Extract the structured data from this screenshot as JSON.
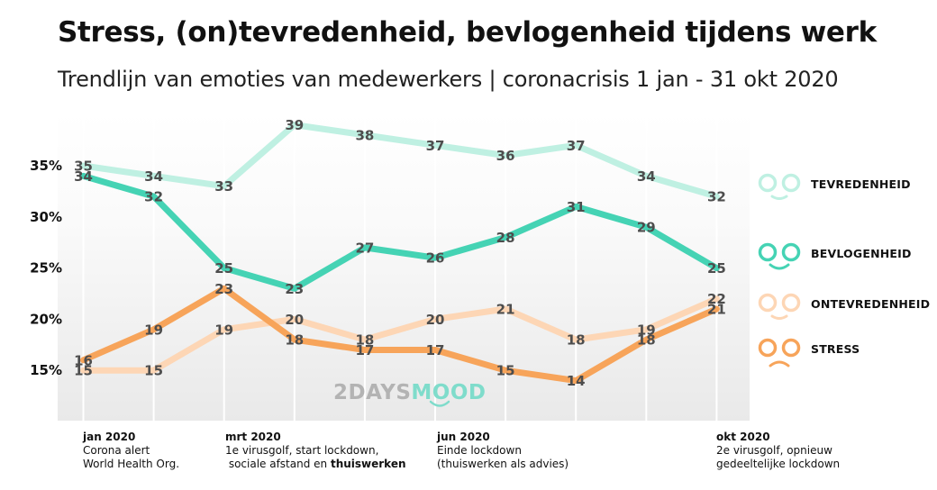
{
  "title": "Stress, (on)tevredenheid, bevlogenheid tijdens werk",
  "subtitle": "Trendlijn van emoties van medewerkers | coronacrisis 1 jan - 31 okt 2020",
  "watermark": {
    "part1": "2DAYS",
    "part2": "MOOD",
    "color1": "#b3b3b3",
    "color2": "#7fdccb"
  },
  "annotations": [
    {
      "title": "jan 2020",
      "line1": "Corona alert",
      "line2": "World Health Org.",
      "line2_bold": ""
    },
    {
      "title": "mrt 2020",
      "line1": "1e virusgolf, start lockdown,",
      "line2": " sociale afstand en ",
      "line2_bold": "thuiswerken"
    },
    {
      "title": "jun 2020",
      "line1": "Einde lockdown",
      "line2": "(thuiswerken als advies)",
      "line2_bold": ""
    },
    {
      "title": "okt 2020",
      "line1": "2e virusgolf, opnieuw",
      "line2": "gedeeltelijke lockdown",
      "line2_bold": ""
    }
  ],
  "chart_data": {
    "type": "line",
    "x": [
      1,
      2,
      3,
      4,
      5,
      6,
      7,
      8,
      9,
      10
    ],
    "y_ticks": [
      "35%",
      "30%",
      "25%",
      "20%",
      "15%"
    ],
    "y_tick_values": [
      35,
      30,
      25,
      20,
      15
    ],
    "ylim": [
      10,
      40
    ],
    "grid": "vertical",
    "legend_position": "right",
    "series": [
      {
        "name": "TEVREDENHEID",
        "color": "#bff0e2",
        "values": [
          35,
          34,
          33,
          39,
          38,
          37,
          36,
          37,
          34,
          32
        ]
      },
      {
        "name": "BEVLOGENHEID",
        "color": "#45d3b4",
        "values": [
          34,
          32,
          25,
          23,
          27,
          26,
          28,
          31,
          29,
          25
        ]
      },
      {
        "name": "ONTEVREDENHEID",
        "color": "#fdd6b5",
        "values": [
          15,
          15,
          19,
          20,
          18,
          20,
          21,
          18,
          19,
          22
        ]
      },
      {
        "name": "STRESS",
        "color": "#f7a45a",
        "values": [
          16,
          19,
          23,
          18,
          17,
          17,
          15,
          14,
          18,
          21
        ]
      }
    ],
    "label_order": [
      "TEVREDENHEID",
      "ONTEVREDENHEID",
      "BEVLOGENHEID",
      "STRESS"
    ]
  }
}
